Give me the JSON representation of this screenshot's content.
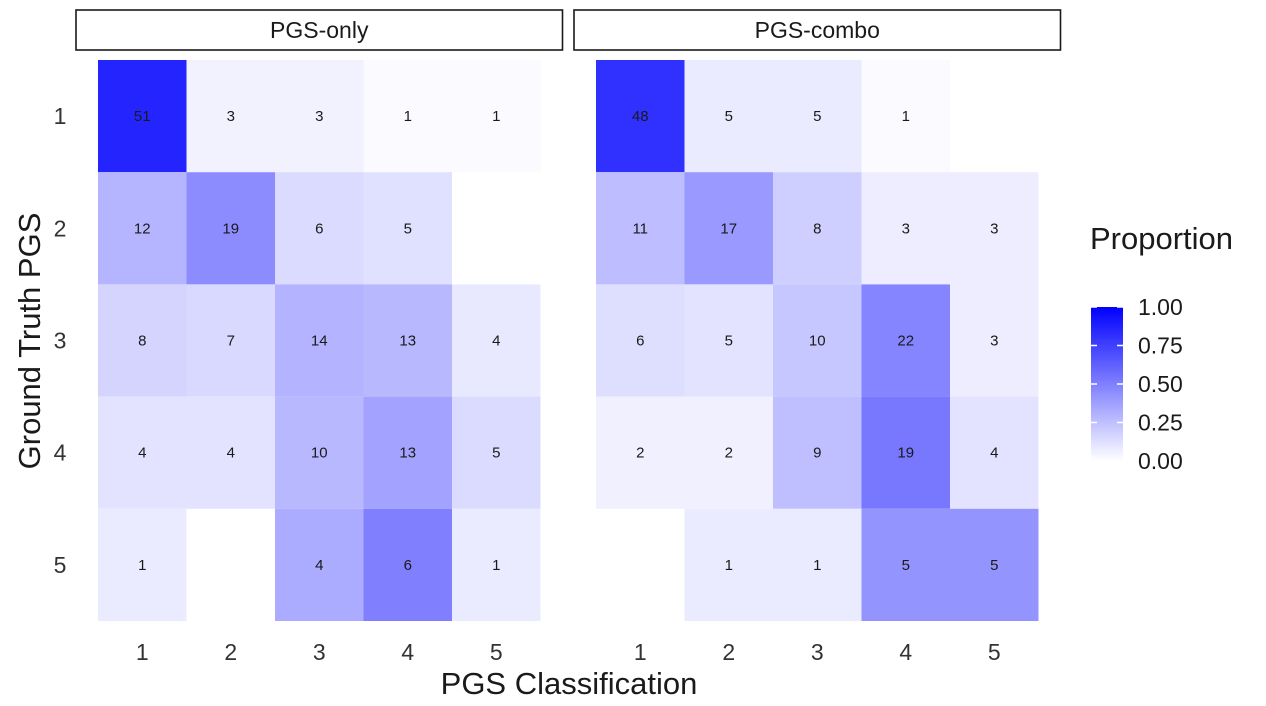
{
  "chart_data": {
    "type": "heatmap",
    "xlabel": "PGS Classification",
    "ylabel": "Ground Truth PGS",
    "categories_x": [
      "1",
      "2",
      "3",
      "4",
      "5"
    ],
    "categories_y": [
      "1",
      "2",
      "3",
      "4",
      "5"
    ],
    "color_low": "#ffffff",
    "color_high": "#0000ff",
    "legend": {
      "title": "Proportion",
      "ticks": [
        "1.00",
        "0.75",
        "0.50",
        "0.25",
        "0.00"
      ],
      "tick_values": [
        1.0,
        0.75,
        0.5,
        0.25,
        0.0
      ]
    },
    "panels": [
      {
        "name": "PGS-only",
        "cells": [
          {
            "row": "1",
            "col": "1",
            "count": 51,
            "proportion": 0.86
          },
          {
            "row": "1",
            "col": "2",
            "count": 3,
            "proportion": 0.05
          },
          {
            "row": "1",
            "col": "3",
            "count": 3,
            "proportion": 0.05
          },
          {
            "row": "1",
            "col": "4",
            "count": 1,
            "proportion": 0.02
          },
          {
            "row": "1",
            "col": "5",
            "count": 1,
            "proportion": 0.02
          },
          {
            "row": "2",
            "col": "1",
            "count": 12,
            "proportion": 0.29
          },
          {
            "row": "2",
            "col": "2",
            "count": 19,
            "proportion": 0.45
          },
          {
            "row": "2",
            "col": "3",
            "count": 6,
            "proportion": 0.14
          },
          {
            "row": "2",
            "col": "4",
            "count": 5,
            "proportion": 0.12
          },
          {
            "row": "3",
            "col": "1",
            "count": 8,
            "proportion": 0.17
          },
          {
            "row": "3",
            "col": "2",
            "count": 7,
            "proportion": 0.15
          },
          {
            "row": "3",
            "col": "3",
            "count": 14,
            "proportion": 0.3
          },
          {
            "row": "3",
            "col": "4",
            "count": 13,
            "proportion": 0.28
          },
          {
            "row": "3",
            "col": "5",
            "count": 4,
            "proportion": 0.09
          },
          {
            "row": "4",
            "col": "1",
            "count": 4,
            "proportion": 0.11
          },
          {
            "row": "4",
            "col": "2",
            "count": 4,
            "proportion": 0.11
          },
          {
            "row": "4",
            "col": "3",
            "count": 10,
            "proportion": 0.28
          },
          {
            "row": "4",
            "col": "4",
            "count": 13,
            "proportion": 0.36
          },
          {
            "row": "4",
            "col": "5",
            "count": 5,
            "proportion": 0.14
          },
          {
            "row": "5",
            "col": "1",
            "count": 1,
            "proportion": 0.08
          },
          {
            "row": "5",
            "col": "3",
            "count": 4,
            "proportion": 0.33
          },
          {
            "row": "5",
            "col": "4",
            "count": 6,
            "proportion": 0.5
          },
          {
            "row": "5",
            "col": "5",
            "count": 1,
            "proportion": 0.08
          }
        ]
      },
      {
        "name": "PGS-combo",
        "cells": [
          {
            "row": "1",
            "col": "1",
            "count": 48,
            "proportion": 0.81
          },
          {
            "row": "1",
            "col": "2",
            "count": 5,
            "proportion": 0.08
          },
          {
            "row": "1",
            "col": "3",
            "count": 5,
            "proportion": 0.08
          },
          {
            "row": "1",
            "col": "4",
            "count": 1,
            "proportion": 0.02
          },
          {
            "row": "2",
            "col": "1",
            "count": 11,
            "proportion": 0.26
          },
          {
            "row": "2",
            "col": "2",
            "count": 17,
            "proportion": 0.4
          },
          {
            "row": "2",
            "col": "3",
            "count": 8,
            "proportion": 0.19
          },
          {
            "row": "2",
            "col": "4",
            "count": 3,
            "proportion": 0.07
          },
          {
            "row": "2",
            "col": "5",
            "count": 3,
            "proportion": 0.07
          },
          {
            "row": "3",
            "col": "1",
            "count": 6,
            "proportion": 0.13
          },
          {
            "row": "3",
            "col": "2",
            "count": 5,
            "proportion": 0.11
          },
          {
            "row": "3",
            "col": "3",
            "count": 10,
            "proportion": 0.22
          },
          {
            "row": "3",
            "col": "4",
            "count": 22,
            "proportion": 0.48
          },
          {
            "row": "3",
            "col": "5",
            "count": 3,
            "proportion": 0.07
          },
          {
            "row": "4",
            "col": "1",
            "count": 2,
            "proportion": 0.06
          },
          {
            "row": "4",
            "col": "2",
            "count": 2,
            "proportion": 0.06
          },
          {
            "row": "4",
            "col": "3",
            "count": 9,
            "proportion": 0.25
          },
          {
            "row": "4",
            "col": "4",
            "count": 19,
            "proportion": 0.53
          },
          {
            "row": "4",
            "col": "5",
            "count": 4,
            "proportion": 0.11
          },
          {
            "row": "5",
            "col": "2",
            "count": 1,
            "proportion": 0.08
          },
          {
            "row": "5",
            "col": "3",
            "count": 1,
            "proportion": 0.08
          },
          {
            "row": "5",
            "col": "4",
            "count": 5,
            "proportion": 0.42
          },
          {
            "row": "5",
            "col": "5",
            "count": 5,
            "proportion": 0.42
          }
        ]
      }
    ]
  }
}
